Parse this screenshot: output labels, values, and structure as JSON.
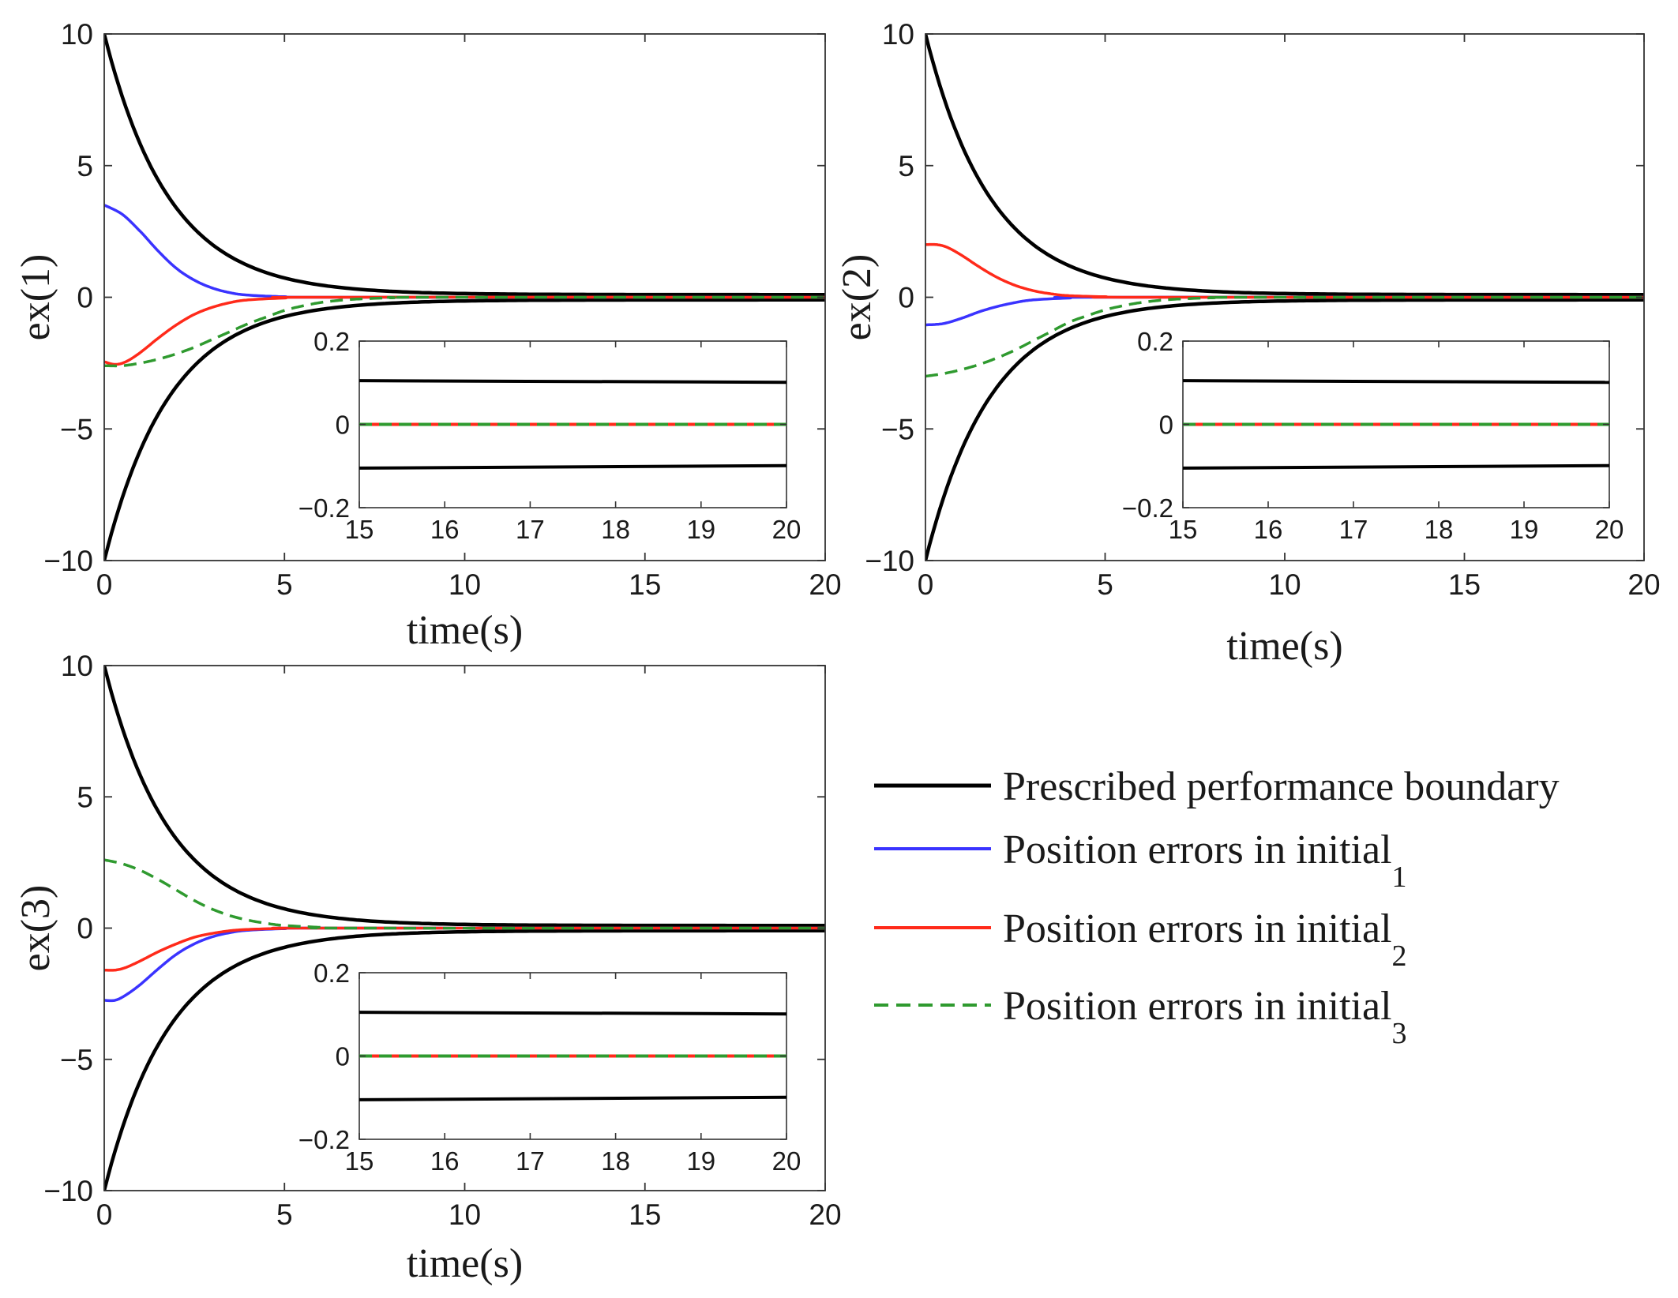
{
  "chart_data": [
    {
      "type": "line",
      "ylabel": "ex(1)",
      "xlabel": "time(s)",
      "xlim": [
        0,
        20
      ],
      "ylim": [
        -10,
        10
      ],
      "xticks": [
        0,
        5,
        10,
        15,
        20
      ],
      "yticks": [
        -10,
        -5,
        0,
        5,
        10
      ],
      "series": [
        {
          "name": "Prescribed performance boundary (upper)",
          "style": "boundary_upper",
          "rho0": 10,
          "rhoInf": 0.1,
          "decay": 0.55
        },
        {
          "name": "Prescribed performance boundary (lower)",
          "style": "boundary_lower",
          "rho0": 10,
          "rhoInf": 0.1,
          "decay": 0.55
        },
        {
          "name": "Position errors in initial_1",
          "style": "blue",
          "points": [
            [
              0,
              3.5
            ],
            [
              0.5,
              3.15
            ],
            [
              1,
              2.5
            ],
            [
              1.5,
              1.75
            ],
            [
              2,
              1.1
            ],
            [
              2.5,
              0.65
            ],
            [
              3,
              0.35
            ],
            [
              3.5,
              0.17
            ],
            [
              4,
              0.08
            ],
            [
              5,
              0.02
            ],
            [
              6,
              0
            ],
            [
              20,
              0
            ]
          ]
        },
        {
          "name": "Position errors in initial_2",
          "style": "red",
          "points": [
            [
              0,
              -2.45
            ],
            [
              0.3,
              -2.55
            ],
            [
              0.6,
              -2.45
            ],
            [
              1,
              -2.1
            ],
            [
              1.5,
              -1.55
            ],
            [
              2,
              -1.05
            ],
            [
              2.5,
              -0.65
            ],
            [
              3,
              -0.38
            ],
            [
              3.5,
              -0.2
            ],
            [
              4,
              -0.1
            ],
            [
              5,
              -0.03
            ],
            [
              6,
              0
            ],
            [
              20,
              0
            ]
          ]
        },
        {
          "name": "Position errors in initial_3",
          "style": "green",
          "points": [
            [
              0,
              -2.6
            ],
            [
              0.5,
              -2.6
            ],
            [
              1,
              -2.5
            ],
            [
              1.5,
              -2.35
            ],
            [
              2,
              -2.15
            ],
            [
              2.5,
              -1.9
            ],
            [
              3,
              -1.6
            ],
            [
              3.5,
              -1.3
            ],
            [
              4,
              -1.0
            ],
            [
              4.5,
              -0.75
            ],
            [
              5,
              -0.5
            ],
            [
              5.5,
              -0.33
            ],
            [
              6,
              -0.2
            ],
            [
              6.5,
              -0.12
            ],
            [
              7,
              -0.07
            ],
            [
              8,
              -0.02
            ],
            [
              9,
              0
            ],
            [
              20,
              0
            ]
          ]
        }
      ],
      "inset": {
        "xlim": [
          15,
          20
        ],
        "ylim": [
          -0.2,
          0.2
        ],
        "xticks": [
          15,
          16,
          17,
          18,
          19,
          20
        ],
        "yticks": [
          0.2,
          0,
          -0.2
        ],
        "upper": [
          [
            15,
            0.105
          ],
          [
            20,
            0.101
          ]
        ],
        "lower": [
          [
            15,
            -0.105
          ],
          [
            20,
            -0.099
          ]
        ],
        "zero": 0
      }
    },
    {
      "type": "line",
      "ylabel": "ex(2)",
      "xlabel": "time(s)",
      "xlim": [
        0,
        20
      ],
      "ylim": [
        -10,
        10
      ],
      "xticks": [
        0,
        5,
        10,
        15,
        20
      ],
      "yticks": [
        -10,
        -5,
        0,
        5,
        10
      ],
      "series": [
        {
          "name": "Prescribed performance boundary (upper)",
          "style": "boundary_upper",
          "rho0": 10,
          "rhoInf": 0.1,
          "decay": 0.55
        },
        {
          "name": "Prescribed performance boundary (lower)",
          "style": "boundary_lower",
          "rho0": 10,
          "rhoInf": 0.1,
          "decay": 0.55
        },
        {
          "name": "Position errors in initial_1",
          "style": "blue",
          "points": [
            [
              0,
              -1.05
            ],
            [
              0.5,
              -1.0
            ],
            [
              1,
              -0.8
            ],
            [
              1.5,
              -0.55
            ],
            [
              2,
              -0.35
            ],
            [
              2.5,
              -0.2
            ],
            [
              3,
              -0.1
            ],
            [
              4,
              -0.03
            ],
            [
              5,
              0
            ],
            [
              20,
              0
            ]
          ]
        },
        {
          "name": "Position errors in initial_2",
          "style": "red",
          "points": [
            [
              0,
              2.0
            ],
            [
              0.3,
              2.0
            ],
            [
              0.6,
              1.9
            ],
            [
              1,
              1.6
            ],
            [
              1.5,
              1.15
            ],
            [
              2,
              0.75
            ],
            [
              2.5,
              0.45
            ],
            [
              3,
              0.25
            ],
            [
              3.5,
              0.13
            ],
            [
              4,
              0.06
            ],
            [
              5,
              0.02
            ],
            [
              6,
              0
            ],
            [
              20,
              0
            ]
          ]
        },
        {
          "name": "Position errors in initial_3",
          "style": "green",
          "points": [
            [
              0,
              -3.0
            ],
            [
              0.5,
              -2.9
            ],
            [
              1,
              -2.75
            ],
            [
              1.5,
              -2.55
            ],
            [
              2,
              -2.3
            ],
            [
              2.5,
              -2.0
            ],
            [
              3,
              -1.65
            ],
            [
              3.5,
              -1.3
            ],
            [
              4,
              -0.95
            ],
            [
              4.5,
              -0.7
            ],
            [
              5,
              -0.48
            ],
            [
              5.5,
              -0.32
            ],
            [
              6,
              -0.2
            ],
            [
              6.5,
              -0.12
            ],
            [
              7,
              -0.07
            ],
            [
              8,
              -0.02
            ],
            [
              9,
              0
            ],
            [
              20,
              0
            ]
          ]
        }
      ],
      "inset": {
        "xlim": [
          15,
          20
        ],
        "ylim": [
          -0.2,
          0.2
        ],
        "xticks": [
          15,
          16,
          17,
          18,
          19,
          20
        ],
        "yticks": [
          0.2,
          0,
          -0.2
        ],
        "upper": [
          [
            15,
            0.105
          ],
          [
            20,
            0.101
          ]
        ],
        "lower": [
          [
            15,
            -0.105
          ],
          [
            20,
            -0.099
          ]
        ],
        "zero": 0
      }
    },
    {
      "type": "line",
      "ylabel": "ex(3)",
      "xlabel": "time(s)",
      "xlim": [
        0,
        20
      ],
      "ylim": [
        -10,
        10
      ],
      "xticks": [
        0,
        5,
        10,
        15,
        20
      ],
      "yticks": [
        -10,
        -5,
        0,
        5,
        10
      ],
      "series": [
        {
          "name": "Prescribed performance boundary (upper)",
          "style": "boundary_upper",
          "rho0": 10,
          "rhoInf": 0.1,
          "decay": 0.55
        },
        {
          "name": "Prescribed performance boundary (lower)",
          "style": "boundary_lower",
          "rho0": 10,
          "rhoInf": 0.1,
          "decay": 0.55
        },
        {
          "name": "Position errors in initial_1",
          "style": "blue",
          "points": [
            [
              0,
              -2.75
            ],
            [
              0.3,
              -2.75
            ],
            [
              0.6,
              -2.55
            ],
            [
              1,
              -2.15
            ],
            [
              1.5,
              -1.55
            ],
            [
              2,
              -1.0
            ],
            [
              2.5,
              -0.6
            ],
            [
              3,
              -0.33
            ],
            [
              3.5,
              -0.17
            ],
            [
              4,
              -0.08
            ],
            [
              5,
              -0.02
            ],
            [
              6,
              0
            ],
            [
              20,
              0
            ]
          ]
        },
        {
          "name": "Position errors in initial_2",
          "style": "red",
          "points": [
            [
              0,
              -1.6
            ],
            [
              0.3,
              -1.6
            ],
            [
              0.6,
              -1.5
            ],
            [
              1,
              -1.25
            ],
            [
              1.5,
              -0.9
            ],
            [
              2,
              -0.6
            ],
            [
              2.5,
              -0.35
            ],
            [
              3,
              -0.2
            ],
            [
              3.5,
              -0.1
            ],
            [
              4,
              -0.05
            ],
            [
              5,
              -0.01
            ],
            [
              6,
              0
            ],
            [
              20,
              0
            ]
          ]
        },
        {
          "name": "Position errors in initial_3",
          "style": "green",
          "points": [
            [
              0,
              2.6
            ],
            [
              0.5,
              2.45
            ],
            [
              1,
              2.2
            ],
            [
              1.5,
              1.85
            ],
            [
              2,
              1.45
            ],
            [
              2.5,
              1.05
            ],
            [
              3,
              0.72
            ],
            [
              3.5,
              0.47
            ],
            [
              4,
              0.3
            ],
            [
              4.5,
              0.18
            ],
            [
              5,
              0.1
            ],
            [
              6,
              0.03
            ],
            [
              7,
              0
            ],
            [
              20,
              0
            ]
          ]
        }
      ],
      "inset": {
        "xlim": [
          15,
          20
        ],
        "ylim": [
          -0.2,
          0.2
        ],
        "xticks": [
          15,
          16,
          17,
          18,
          19,
          20
        ],
        "yticks": [
          0.2,
          0,
          -0.2
        ],
        "upper": [
          [
            15,
            0.105
          ],
          [
            20,
            0.101
          ]
        ],
        "lower": [
          [
            15,
            -0.105
          ],
          [
            20,
            -0.099
          ]
        ],
        "zero": 0
      }
    }
  ],
  "legend": {
    "placement": "right of bottom-left panel",
    "items": [
      {
        "label": "Prescribed performance boundary",
        "sub": "",
        "style": "boundary",
        "color": "#000000",
        "dash": false
      },
      {
        "label": "Position errors in initial",
        "sub": "1",
        "style": "blue",
        "color": "#3a33ff",
        "dash": false
      },
      {
        "label": "Position errors in initial",
        "sub": "2",
        "style": "red",
        "color": "#ff2a1a",
        "dash": false
      },
      {
        "label": "Position errors in initial",
        "sub": "3",
        "style": "green",
        "color": "#2f9a2f",
        "dash": true
      }
    ]
  },
  "colors": {
    "boundary": "#000000",
    "blue": "#3a33ff",
    "red": "#ff2a1a",
    "green": "#2f9a2f",
    "axis": "#333333"
  }
}
